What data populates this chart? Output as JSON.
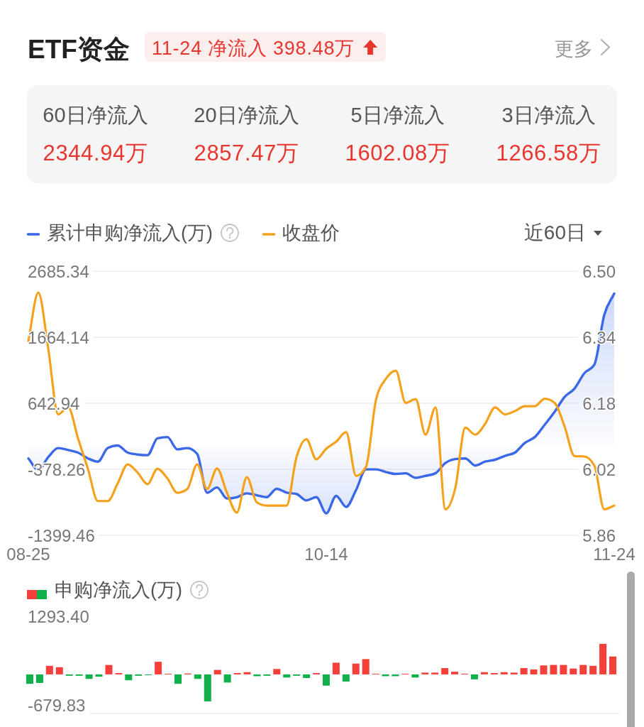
{
  "chart_data": [
    {
      "type": "other",
      "title": "ETF资金",
      "annotations": [
        "11-24 净流入 398.48万",
        "更多",
        "60日净流入",
        "2344.94万",
        "20日净流入",
        "2857.47万",
        "5日净流入",
        "1602.08万",
        "3日净流入",
        "1266.58万"
      ]
    },
    {
      "type": "line",
      "categories": [
        "08-25",
        null,
        null,
        null,
        null,
        null,
        null,
        null,
        null,
        null,
        null,
        null,
        null,
        null,
        null,
        null,
        null,
        null,
        null,
        null,
        null,
        null,
        null,
        null,
        null,
        null,
        null,
        null,
        null,
        null,
        "10-14",
        null,
        null,
        null,
        null,
        null,
        null,
        null,
        null,
        null,
        null,
        null,
        null,
        null,
        null,
        null,
        null,
        null,
        null,
        null,
        null,
        null,
        null,
        null,
        null,
        null,
        null,
        null,
        null,
        "11-24"
      ],
      "series": [
        {
          "name": "累计申购净流入(万)",
          "type": "area",
          "color": "#3a68e8",
          "values": [
            -210,
            -390,
            -190,
            -50,
            -80,
            -120,
            -210,
            -260,
            -50,
            -10,
            -120,
            -150,
            -160,
            100,
            120,
            -70,
            -50,
            -140,
            -740,
            -660,
            -830,
            -810,
            -750,
            -780,
            -810,
            -680,
            -740,
            -760,
            -860,
            -810,
            -1060,
            -790,
            -960,
            -700,
            -380,
            -380,
            -420,
            -450,
            -440,
            -510,
            -480,
            -440,
            -280,
            -220,
            -210,
            -320,
            -260,
            -230,
            -170,
            -120,
            30,
            120,
            310,
            510,
            740,
            870,
            1110,
            1240,
            2010,
            2340
          ]
        },
        {
          "name": "收盘价",
          "type": "line",
          "axis": "y2",
          "color": "#f5a11c",
          "values": [
            6.331,
            6.448,
            6.313,
            6.153,
            6.171,
            6.095,
            6.021,
            5.943,
            5.943,
            5.986,
            6.032,
            6.012,
            5.984,
            6.021,
            5.998,
            5.963,
            5.972,
            6.032,
            5.972,
            6.022,
            5.963,
            5.915,
            6.001,
            5.94,
            5.932,
            5.932,
            5.932,
            6.049,
            6.093,
            6.044,
            6.07,
            6.087,
            6.11,
            6.004,
            6.026,
            6.187,
            6.239,
            6.259,
            6.181,
            6.19,
            6.104,
            6.17,
            5.923,
            5.975,
            6.121,
            6.104,
            6.13,
            6.17,
            6.153,
            6.161,
            6.173,
            6.173,
            6.191,
            6.181,
            6.124,
            6.052,
            6.051,
            6.029,
            5.923,
            5.932
          ]
        }
      ],
      "ylim": [
        -1399.46,
        2685.34
      ],
      "yticks": [
        2685.34,
        1664.14,
        642.94,
        -378.26,
        -1399.46
      ],
      "y2lim": [
        5.86,
        6.5
      ],
      "y2ticks": [
        {
          "value": 6.5,
          "label": "6.50"
        },
        6.34,
        6.18,
        6.02,
        5.86
      ],
      "grid": "y",
      "legend": "top left",
      "annotations": [
        "近60日"
      ]
    },
    {
      "type": "bar",
      "categories": [
        null,
        null,
        null,
        null,
        null,
        null,
        null,
        null,
        null,
        null,
        null,
        null,
        null,
        null,
        null,
        null,
        null,
        null,
        null,
        null,
        null,
        null,
        null,
        null,
        null,
        null,
        null,
        null,
        null,
        null,
        null,
        null,
        null,
        null,
        null,
        null,
        null,
        null,
        null,
        null,
        null,
        null,
        null,
        null,
        null,
        null,
        null,
        null,
        null,
        null,
        null,
        null,
        null,
        null,
        null,
        null,
        null,
        null,
        null,
        null
      ],
      "series": [
        {
          "name": "申购净流入(万)",
          "values": [
            -210,
            -190,
            190,
            160,
            -30,
            -30,
            -100,
            -50,
            210,
            30,
            -130,
            -30,
            -10,
            280,
            10,
            -210,
            20,
            -100,
            -600,
            100,
            -180,
            30,
            50,
            -40,
            -30,
            120,
            -70,
            -30,
            -80,
            30,
            -250,
            260,
            -160,
            240,
            340,
            10,
            -40,
            -40,
            10,
            -70,
            40,
            40,
            140,
            60,
            10,
            -110,
            50,
            30,
            50,
            40,
            140,
            110,
            200,
            210,
            210,
            130,
            210,
            190,
            680,
            398.48
          ],
          "colors": [
            "#12b04b",
            "#12b04b",
            "#f5403a",
            "#f5403a",
            "#12b04b",
            "#12b04b",
            "#12b04b",
            "#12b04b",
            "#f5403a",
            "#f5403a",
            "#12b04b",
            "#12b04b",
            "#12b04b",
            "#f5403a",
            "#f5403a",
            "#12b04b",
            "#f5403a",
            "#12b04b",
            "#12b04b",
            "#f5403a",
            "#12b04b",
            "#f5403a",
            "#f5403a",
            "#12b04b",
            "#12b04b",
            "#f5403a",
            "#12b04b",
            "#12b04b",
            "#12b04b",
            "#f5403a",
            "#12b04b",
            "#f5403a",
            "#12b04b",
            "#f5403a",
            "#f5403a",
            "#f5403a",
            "#12b04b",
            "#12b04b",
            "#f5403a",
            "#12b04b",
            "#f5403a",
            "#f5403a",
            "#f5403a",
            "#f5403a",
            "#f5403a",
            "#12b04b",
            "#f5403a",
            "#f5403a",
            "#f5403a",
            "#f5403a",
            "#f5403a",
            "#f5403a",
            "#f5403a",
            "#f5403a",
            "#f5403a",
            "#f5403a",
            "#f5403a",
            "#f5403a",
            "#f5403a",
            "#f5403a"
          ]
        }
      ],
      "ylim": [
        -870,
        1293.4
      ],
      "yticks": [
        {
          "value": 1293.4,
          "label": "1293.40"
        },
        -679.83
      ],
      "legend": "top left"
    }
  ]
}
